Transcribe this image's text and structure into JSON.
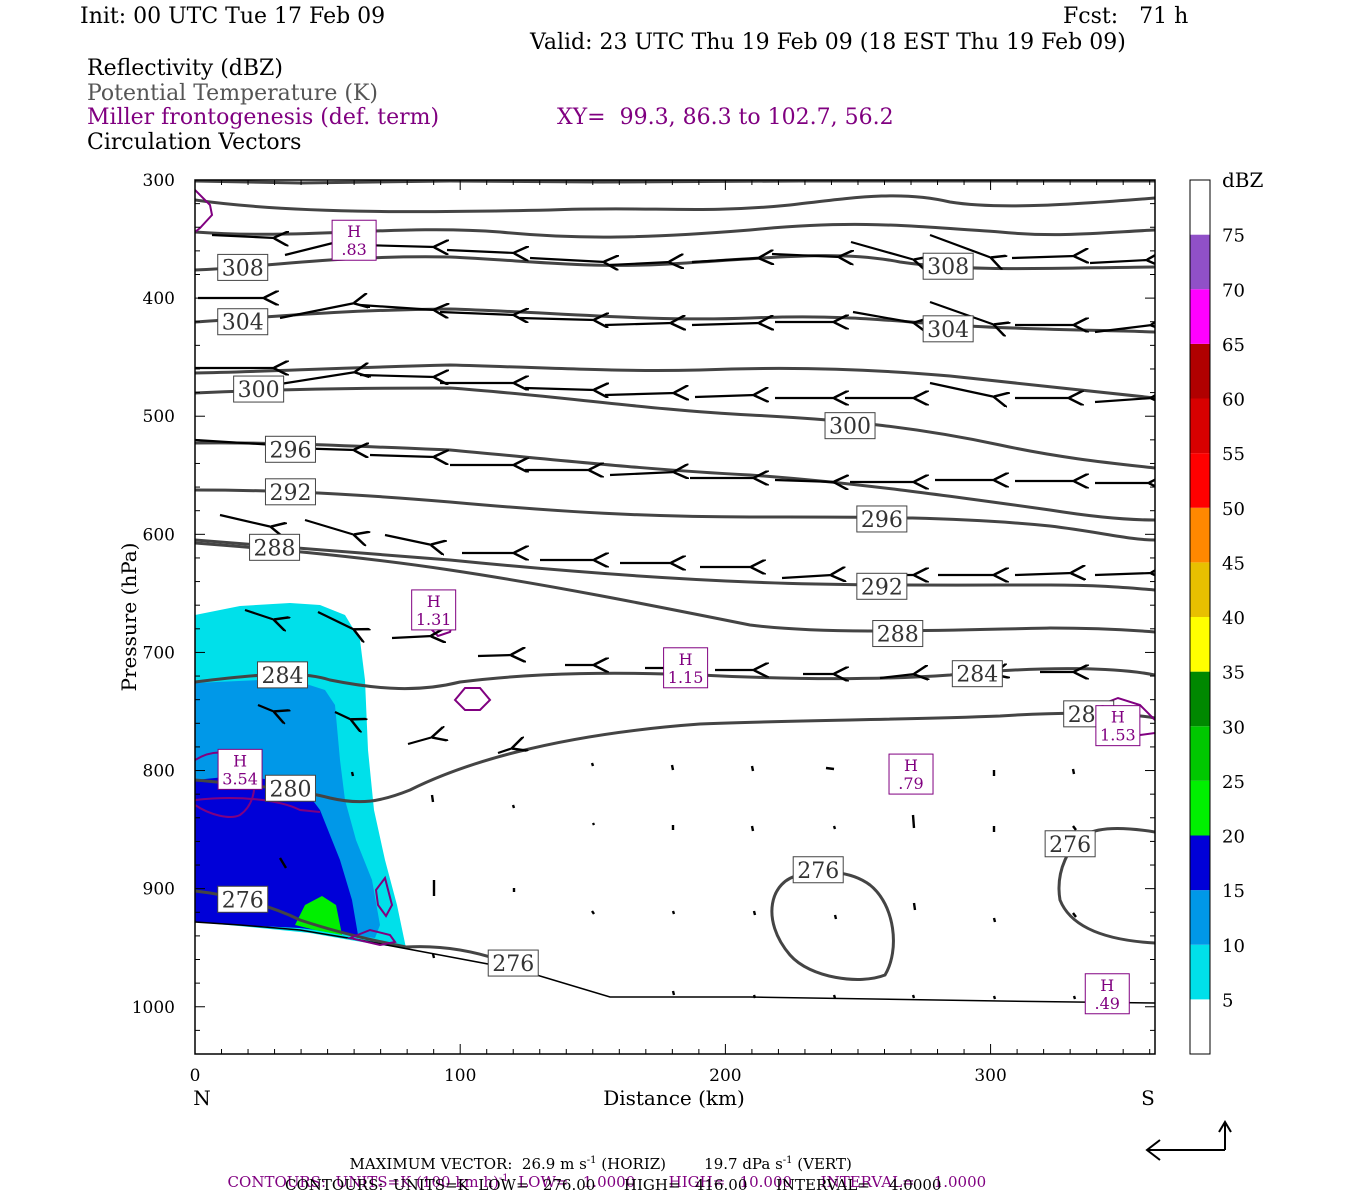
{
  "header": {
    "init": "Init: 00 UTC Tue 17 Feb 09",
    "fcst": "Fcst:   71 h",
    "valid": "Valid: 23 UTC Thu 19 Feb 09 (18 EST Thu 19 Feb 09)",
    "field1": "Reflectivity (dBZ)",
    "field2": "Potential Temperature (K)",
    "field3": "Miller frontogenesis (def. term)",
    "xy": "XY=  99.3, 86.3 to 102.7, 56.2",
    "field4": "Circulation Vectors"
  },
  "colors": {
    "purple": "#800080",
    "theta": "#444444",
    "refl_5": "#00e0ea",
    "refl_10": "#0098e8",
    "refl_15": "#0000d8",
    "refl_20": "#00f000"
  },
  "chart_data": {
    "type": "contour",
    "ylabel": "Pressure (hPa)",
    "xlabel": "Distance (km)",
    "x_ticks": [
      "0",
      "100",
      "200",
      "300"
    ],
    "y_ticks": [
      "300",
      "400",
      "500",
      "600",
      "700",
      "800",
      "900",
      "1000"
    ],
    "xlim": [
      0,
      362
    ],
    "ylim": [
      300,
      1040
    ],
    "end_labels": {
      "left": "N",
      "right": "S"
    },
    "theta_labels": [
      {
        "label": "308",
        "x": 18,
        "p": 374
      },
      {
        "label": "308",
        "x": 284,
        "p": 373
      },
      {
        "label": "304",
        "x": 18,
        "p": 420
      },
      {
        "label": "304",
        "x": 284,
        "p": 426
      },
      {
        "label": "300",
        "x": 24,
        "p": 477
      },
      {
        "label": "300",
        "x": 247,
        "p": 508
      },
      {
        "label": "296",
        "x": 36,
        "p": 528
      },
      {
        "label": "296",
        "x": 259,
        "p": 587
      },
      {
        "label": "292",
        "x": 36,
        "p": 564
      },
      {
        "label": "292",
        "x": 259,
        "p": 644
      },
      {
        "label": "288",
        "x": 30,
        "p": 611
      },
      {
        "label": "288",
        "x": 265,
        "p": 684
      },
      {
        "label": "284",
        "x": 33,
        "p": 719
      },
      {
        "label": "284",
        "x": 295,
        "p": 718
      },
      {
        "label": "280",
        "x": 36,
        "p": 815
      },
      {
        "label": "280",
        "x": 337,
        "p": 752
      },
      {
        "label": "276",
        "x": 18,
        "p": 909
      },
      {
        "label": "276",
        "x": 120,
        "p": 963
      },
      {
        "label": "276",
        "x": 235,
        "p": 884
      },
      {
        "label": "276",
        "x": 330,
        "p": 862
      }
    ],
    "frontogenesis_highs": [
      {
        "label": "H",
        "value": ".83",
        "x": 60,
        "p": 351
      },
      {
        "label": "H",
        "value": "1.31",
        "x": 90,
        "p": 664
      },
      {
        "label": "H",
        "value": "1.15",
        "x": 185,
        "p": 713
      },
      {
        "label": "H",
        "value": "3.54",
        "x": 17,
        "p": 799
      },
      {
        "label": "H",
        "value": ".79",
        "x": 270,
        "p": 803
      },
      {
        "label": "H",
        "value": "1.53",
        "x": 348,
        "p": 762
      },
      {
        "label": "H",
        "value": ".49",
        "x": 344,
        "p": 989
      }
    ],
    "colorbar": {
      "title": "dBZ",
      "levels": [
        "5",
        "10",
        "15",
        "20",
        "25",
        "30",
        "35",
        "40",
        "45",
        "50",
        "55",
        "60",
        "65",
        "70",
        "75"
      ],
      "colors": [
        "#ffffff",
        "#00e0ea",
        "#0098e8",
        "#0000d8",
        "#00f000",
        "#00c800",
        "#008800",
        "#ffff00",
        "#e8c000",
        "#ff8800",
        "#ff0000",
        "#d80000",
        "#b00000",
        "#ff00ff",
        "#9050c8",
        "#ffffff"
      ]
    },
    "footer": {
      "line1a": "MAXIMUM VECTOR:  26.9 m s",
      "line1b": " (HORIZ)        19.7 dPa s",
      "line1c": " (VERT)",
      "line2a": "CONTOURS:  UNITS=K (100 km h)",
      "line2b": "  LOW=   1.0000       HIGH=   10.000      INTERVAL=    1.0000",
      "line3": "CONTOURS:  UNITS=K  LOW=   276.00      HIGH=   416.00      INTERVAL=    4.0000",
      "sup1": "-1",
      "sup2": "-1",
      "sup3": "-1"
    }
  }
}
